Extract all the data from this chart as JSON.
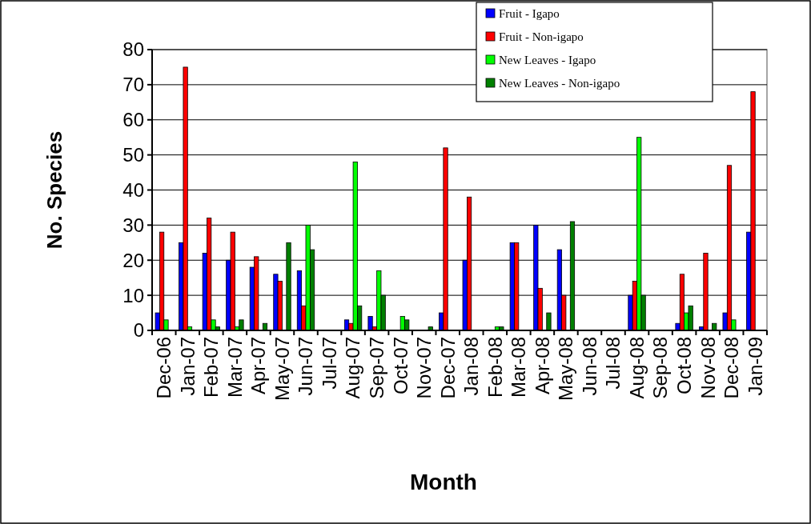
{
  "chart_data": {
    "type": "bar",
    "xlabel": "Month",
    "ylabel": "No. Species",
    "categories": [
      "Dec-06",
      "Jan-07",
      "Feb-07",
      "Mar-07",
      "Apr-07",
      "May-07",
      "Jun-07",
      "Jul-07",
      "Aug-07",
      "Sep-07",
      "Oct-07",
      "Nov-07",
      "Dec-07",
      "Jan-08",
      "Feb-08",
      "Mar-08",
      "Apr-08",
      "May-08",
      "Jun-08",
      "Jul-08",
      "Aug-08",
      "Sep-08",
      "Oct-08",
      "Nov-08",
      "Dec-08",
      "Jan-09"
    ],
    "series": [
      {
        "name": "Fruit - Igapo",
        "color": "#0000ff",
        "values": [
          5,
          25,
          22,
          20,
          18,
          16,
          17,
          0,
          3,
          4,
          0,
          0,
          5,
          20,
          0,
          25,
          30,
          23,
          0,
          0,
          10,
          0,
          2,
          1,
          5,
          28
        ]
      },
      {
        "name": "Fruit - Non-igapo",
        "color": "#ff0000",
        "values": [
          28,
          75,
          32,
          28,
          21,
          14,
          7,
          0,
          2,
          1,
          0,
          0,
          52,
          38,
          0,
          25,
          12,
          10,
          0,
          0,
          14,
          0,
          16,
          22,
          47,
          68
        ]
      },
      {
        "name": "New Leaves - Igapo",
        "color": "#00ff00",
        "values": [
          3,
          1,
          3,
          1,
          0,
          0,
          30,
          0,
          48,
          17,
          4,
          0,
          0,
          0,
          1,
          0,
          0,
          0,
          0,
          0,
          55,
          0,
          5,
          0,
          3,
          0
        ]
      },
      {
        "name": "New Leaves - Non-igapo",
        "color": "#008000",
        "values": [
          0,
          0,
          1,
          3,
          2,
          25,
          23,
          0,
          7,
          10,
          3,
          1,
          0,
          0,
          1,
          0,
          5,
          31,
          0,
          0,
          10,
          0,
          7,
          2,
          0,
          0
        ]
      }
    ],
    "ylim": [
      0,
      80
    ],
    "yticks": [
      0,
      10,
      20,
      30,
      40,
      50,
      60,
      70,
      80
    ],
    "grid": "y",
    "legend": "top right"
  }
}
